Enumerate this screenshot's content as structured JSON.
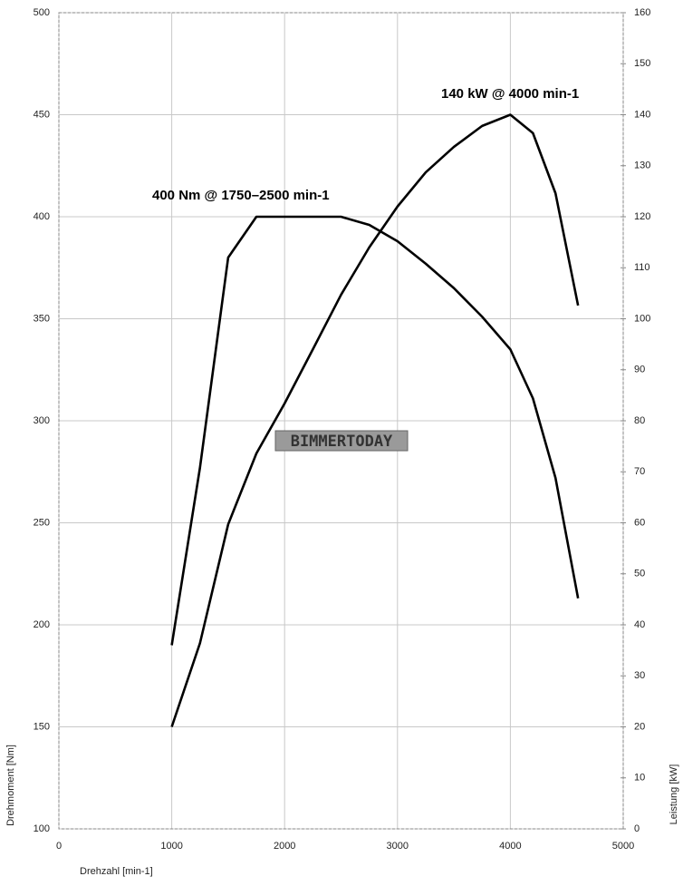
{
  "chart_data": {
    "type": "line",
    "x": [
      1000,
      1250,
      1500,
      1750,
      2000,
      2250,
      2500,
      2750,
      3000,
      3250,
      3500,
      3750,
      4000,
      4200,
      4400,
      4600
    ],
    "series": [
      {
        "color": "#000000",
        "values": [
          190,
          277,
          380,
          400,
          400,
          400,
          400,
          396,
          388,
          377,
          365,
          351,
          335,
          311,
          272,
          213
        ]
      },
      {
        "color": "#000000",
        "axis": "y2",
        "values": [
          20,
          36.4,
          59.7,
          73.6,
          83.4,
          94,
          104.7,
          114,
          122,
          128.7,
          133.7,
          137.8,
          140,
          136.4,
          124.6,
          102.6
        ]
      }
    ],
    "xlim": [
      0,
      5000
    ],
    "xticks": [
      0,
      1000,
      2000,
      3000,
      4000,
      5000
    ],
    "ylim": [
      100,
      500
    ],
    "yticks": [
      100,
      150,
      200,
      250,
      300,
      350,
      400,
      450,
      500
    ],
    "y2lim": [
      0,
      160
    ],
    "y2ticks": [
      0,
      10,
      20,
      30,
      40,
      50,
      60,
      70,
      80,
      90,
      100,
      110,
      120,
      130,
      140,
      150,
      160
    ],
    "xlabel": "Drehzahl [min-1]",
    "ylabel": "Drehmoment [Nm]",
    "y2label": "Leistung [kW]",
    "annotations": [
      "400 Nm @ 1750–2500 min-1",
      "140 kW @ 4000 min-1"
    ],
    "watermark": "BIMMERTODAY",
    "grid": true
  }
}
